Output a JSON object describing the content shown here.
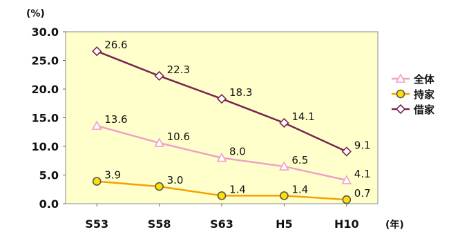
{
  "chart_data": {
    "type": "line",
    "y_unit": "(%)",
    "x_unit": "(年)",
    "categories": [
      "S53",
      "S58",
      "S63",
      "H5",
      "H10"
    ],
    "ylim": [
      0,
      30
    ],
    "yticks": [
      "0.0",
      "5.0",
      "10.0",
      "15.0",
      "20.0",
      "25.0",
      "30.0"
    ],
    "grid": false,
    "legend_position": "right",
    "plot_background": "#ffffcc",
    "series": [
      {
        "name": "全体",
        "color": "#f0a0c8",
        "marker": "triangle",
        "values": [
          13.6,
          10.6,
          8.0,
          6.5,
          4.1
        ],
        "labels": [
          "13.6",
          "10.6",
          "8.0",
          "6.5",
          "4.1"
        ]
      },
      {
        "name": "持家",
        "color": "#f5a000",
        "marker": "circle",
        "values": [
          3.9,
          3.0,
          1.4,
          1.4,
          0.7
        ],
        "labels": [
          "3.9",
          "3.0",
          "1.4",
          "1.4",
          "0.7"
        ]
      },
      {
        "name": "借家",
        "color": "#7b2350",
        "marker": "diamond",
        "values": [
          26.6,
          22.3,
          18.3,
          14.1,
          9.1
        ],
        "labels": [
          "26.6",
          "22.3",
          "18.3",
          "14.1",
          "9.1"
        ]
      }
    ]
  }
}
